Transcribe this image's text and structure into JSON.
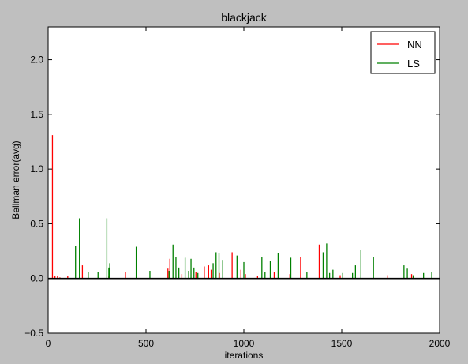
{
  "chart_data": {
    "type": "line",
    "title": "blackjack",
    "xlabel": "iterations",
    "ylabel": "Bellman error(avg)",
    "xlim": [
      0,
      2000
    ],
    "ylim": [
      -0.5,
      2.3
    ],
    "xticks": [
      0,
      500,
      1000,
      1500,
      2000
    ],
    "yticks": [
      -0.5,
      0.0,
      0.5,
      1.0,
      1.5,
      2.0
    ],
    "xtick_labels": [
      "0",
      "500",
      "1000",
      "1500",
      "2000"
    ],
    "ytick_labels": [
      "−0.5",
      "0.0",
      "0.5",
      "1.0",
      "1.5",
      "2.0"
    ],
    "grid": false,
    "legend_position": "top-right",
    "baseline": 0.0,
    "series": [
      {
        "name": "NN",
        "color": "#ff0000",
        "spikes": [
          [
            22,
            1.31
          ],
          [
            35,
            0.02
          ],
          [
            48,
            0.02
          ],
          [
            60,
            0.01
          ],
          [
            100,
            0.02
          ],
          [
            175,
            0.12
          ],
          [
            310,
            0.02
          ],
          [
            395,
            0.06
          ],
          [
            612,
            0.09
          ],
          [
            622,
            0.18
          ],
          [
            683,
            0.04
          ],
          [
            755,
            0.06
          ],
          [
            798,
            0.11
          ],
          [
            820,
            0.12
          ],
          [
            833,
            0.08
          ],
          [
            875,
            0.05
          ],
          [
            940,
            0.24
          ],
          [
            985,
            0.08
          ],
          [
            1008,
            0.04
          ],
          [
            1070,
            0.02
          ],
          [
            1155,
            0.06
          ],
          [
            1235,
            0.04
          ],
          [
            1290,
            0.2
          ],
          [
            1385,
            0.31
          ],
          [
            1492,
            0.03
          ],
          [
            1735,
            0.03
          ],
          [
            1857,
            0.04
          ]
        ]
      },
      {
        "name": "LS",
        "color": "#008000",
        "spikes": [
          [
            140,
            0.3
          ],
          [
            160,
            0.55
          ],
          [
            205,
            0.06
          ],
          [
            255,
            0.06
          ],
          [
            300,
            0.55
          ],
          [
            310,
            0.1
          ],
          [
            315,
            0.14
          ],
          [
            450,
            0.29
          ],
          [
            520,
            0.07
          ],
          [
            618,
            0.07
          ],
          [
            638,
            0.31
          ],
          [
            653,
            0.2
          ],
          [
            668,
            0.1
          ],
          [
            700,
            0.19
          ],
          [
            718,
            0.07
          ],
          [
            730,
            0.18
          ],
          [
            745,
            0.1
          ],
          [
            765,
            0.05
          ],
          [
            843,
            0.14
          ],
          [
            858,
            0.24
          ],
          [
            873,
            0.23
          ],
          [
            892,
            0.17
          ],
          [
            965,
            0.21
          ],
          [
            1000,
            0.15
          ],
          [
            1092,
            0.2
          ],
          [
            1108,
            0.06
          ],
          [
            1135,
            0.16
          ],
          [
            1175,
            0.23
          ],
          [
            1240,
            0.19
          ],
          [
            1322,
            0.06
          ],
          [
            1405,
            0.24
          ],
          [
            1423,
            0.32
          ],
          [
            1438,
            0.05
          ],
          [
            1455,
            0.08
          ],
          [
            1505,
            0.05
          ],
          [
            1555,
            0.05
          ],
          [
            1570,
            0.12
          ],
          [
            1598,
            0.26
          ],
          [
            1662,
            0.2
          ],
          [
            1818,
            0.12
          ],
          [
            1835,
            0.09
          ],
          [
            1865,
            0.03
          ],
          [
            1918,
            0.05
          ],
          [
            1960,
            0.06
          ]
        ]
      }
    ]
  }
}
